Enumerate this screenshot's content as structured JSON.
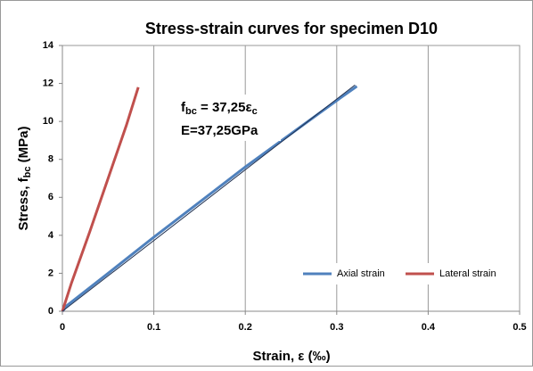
{
  "chart_data": {
    "type": "line",
    "title": "Stress-strain curves for specimen D10",
    "x_label": [
      "Strain,  ε (‰)"
    ],
    "y_label": [
      "Stress, f",
      "bc",
      " (MPa)"
    ],
    "annotation": {
      "formula": [
        "f",
        "bc",
        " = 37,25ε",
        "c"
      ],
      "modulus": "E=37,25GPa"
    },
    "xlim": [
      0,
      0.5
    ],
    "xticks": [
      0,
      0.1,
      0.2,
      0.3,
      0.4,
      0.5
    ],
    "ylim": [
      0,
      14
    ],
    "yticks": [
      0,
      2,
      4,
      6,
      8,
      10,
      12,
      14
    ],
    "grid": "x",
    "legend": "lower right",
    "series": [
      {
        "name": "Axial strain",
        "color": "#4f81bd",
        "x": [
          0,
          0.005,
          0.05,
          0.1,
          0.2,
          0.3,
          0.322
        ],
        "values": [
          0,
          0.3,
          2.0,
          3.9,
          7.6,
          11.1,
          11.85
        ]
      },
      {
        "name": "Lateral strain",
        "color": "#c0504d",
        "x": [
          0,
          0.01,
          0.03,
          0.05,
          0.07,
          0.083
        ],
        "values": [
          0,
          1.5,
          4.2,
          7.0,
          9.8,
          11.8
        ]
      },
      {
        "color": "#1f3050",
        "x": [
          0,
          0.32
        ],
        "values": [
          0,
          11.92
        ]
      }
    ]
  }
}
